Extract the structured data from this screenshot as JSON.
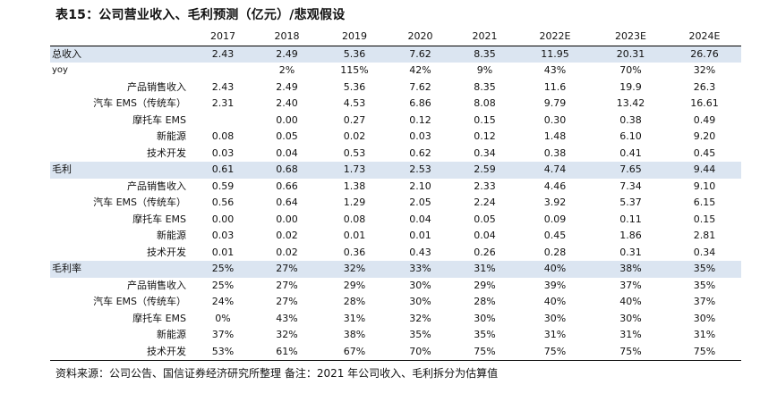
{
  "title": "表15：公司营业收入、毛利预测（亿元）/悲观假设",
  "columns": [
    "",
    "2017",
    "2018",
    "2019",
    "2020",
    "2021",
    "2022E",
    "2023E",
    "2024E"
  ],
  "rows": [
    {
      "kind": "section",
      "label": "总收入",
      "values": [
        "2.43",
        "2.49",
        "5.36",
        "7.62",
        "8.35",
        "11.95",
        "20.31",
        "26.76"
      ]
    },
    {
      "kind": "plain",
      "label": "yoy",
      "values": [
        "",
        "2%",
        "115%",
        "42%",
        "9%",
        "43%",
        "70%",
        "32%"
      ]
    },
    {
      "kind": "sub",
      "label": "产品销售收入",
      "values": [
        "2.43",
        "2.49",
        "5.36",
        "7.62",
        "8.35",
        "11.6",
        "19.9",
        "26.3"
      ]
    },
    {
      "kind": "sub",
      "label": "汽车 EMS（传统车）",
      "values": [
        "2.31",
        "2.40",
        "4.53",
        "6.86",
        "8.08",
        "9.79",
        "13.42",
        "16.61"
      ]
    },
    {
      "kind": "sub",
      "label": "摩托车 EMS",
      "values": [
        "",
        "0.00",
        "0.27",
        "0.12",
        "0.15",
        "0.30",
        "0.38",
        "0.49"
      ]
    },
    {
      "kind": "sub",
      "label": "新能源",
      "values": [
        "0.08",
        "0.05",
        "0.02",
        "0.03",
        "0.12",
        "1.48",
        "6.10",
        "9.20"
      ]
    },
    {
      "kind": "sub",
      "label": "技术开发",
      "values": [
        "0.03",
        "0.04",
        "0.53",
        "0.62",
        "0.34",
        "0.38",
        "0.41",
        "0.45"
      ]
    },
    {
      "kind": "section",
      "label": "毛利",
      "values": [
        "0.61",
        "0.68",
        "1.73",
        "2.53",
        "2.59",
        "4.74",
        "7.65",
        "9.44"
      ]
    },
    {
      "kind": "sub",
      "label": "产品销售收入",
      "values": [
        "0.59",
        "0.66",
        "1.38",
        "2.10",
        "2.33",
        "4.46",
        "7.34",
        "9.10"
      ]
    },
    {
      "kind": "sub",
      "label": "汽车 EMS（传统车）",
      "values": [
        "0.56",
        "0.64",
        "1.29",
        "2.05",
        "2.24",
        "3.92",
        "5.37",
        "6.15"
      ]
    },
    {
      "kind": "sub",
      "label": "摩托车 EMS",
      "values": [
        "0.00",
        "0.00",
        "0.08",
        "0.04",
        "0.05",
        "0.09",
        "0.11",
        "0.15"
      ]
    },
    {
      "kind": "sub",
      "label": "新能源",
      "values": [
        "0.03",
        "0.02",
        "0.01",
        "0.01",
        "0.04",
        "0.45",
        "1.86",
        "2.81"
      ]
    },
    {
      "kind": "sub",
      "label": "技术开发",
      "values": [
        "0.01",
        "0.02",
        "0.36",
        "0.43",
        "0.26",
        "0.28",
        "0.31",
        "0.34"
      ]
    },
    {
      "kind": "section",
      "label": "毛利率",
      "values": [
        "25%",
        "27%",
        "32%",
        "33%",
        "31%",
        "40%",
        "38%",
        "35%"
      ]
    },
    {
      "kind": "sub",
      "label": "产品销售收入",
      "values": [
        "25%",
        "27%",
        "29%",
        "30%",
        "29%",
        "39%",
        "37%",
        "35%"
      ]
    },
    {
      "kind": "sub",
      "label": "汽车 EMS（传统车）",
      "values": [
        "24%",
        "27%",
        "28%",
        "30%",
        "28%",
        "40%",
        "40%",
        "37%"
      ]
    },
    {
      "kind": "sub",
      "label": "摩托车 EMS",
      "values": [
        "0%",
        "43%",
        "31%",
        "32%",
        "30%",
        "30%",
        "30%",
        "30%"
      ]
    },
    {
      "kind": "sub",
      "label": "新能源",
      "values": [
        "37%",
        "32%",
        "38%",
        "35%",
        "35%",
        "31%",
        "31%",
        "31%"
      ]
    },
    {
      "kind": "sub",
      "label": "技术开发",
      "values": [
        "53%",
        "61%",
        "67%",
        "70%",
        "75%",
        "75%",
        "75%",
        "75%"
      ]
    }
  ],
  "note": "资料来源：公司公告、国信证券经济研究所整理   备注：2021 年公司收入、毛利拆分为估算值"
}
